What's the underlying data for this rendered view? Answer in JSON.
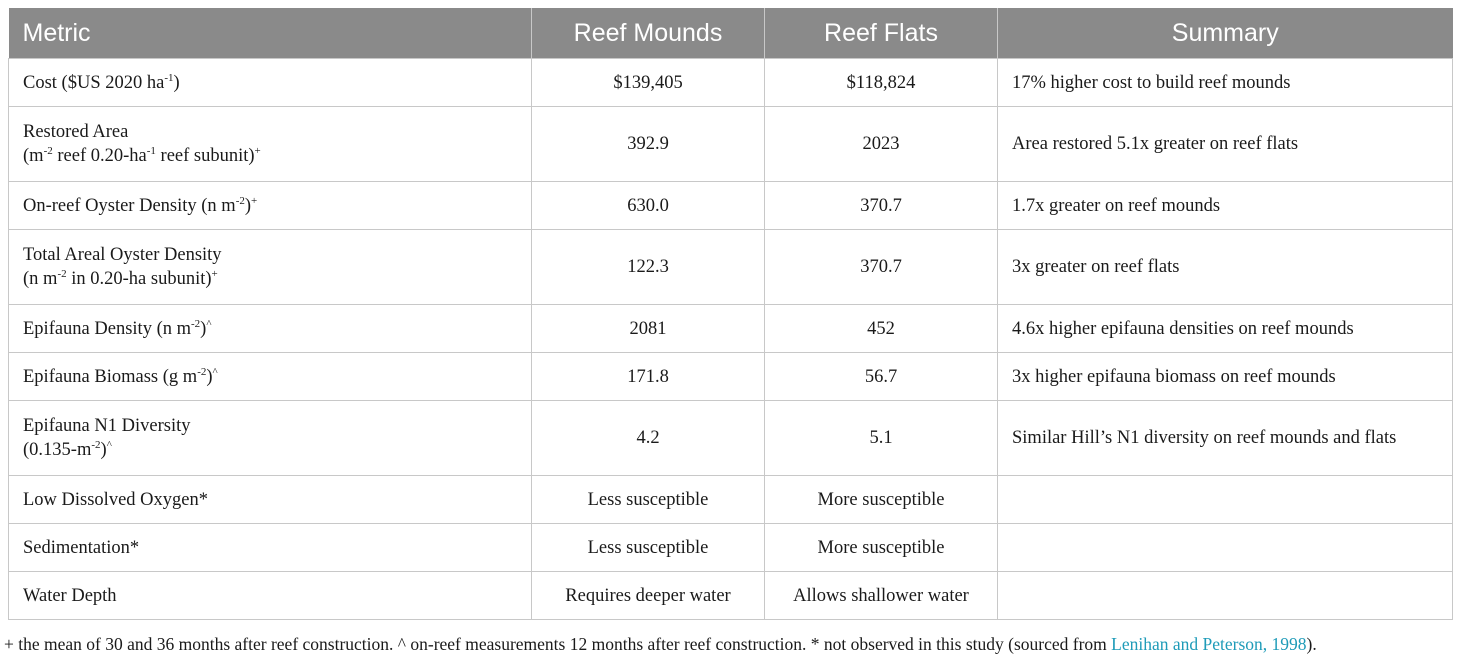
{
  "table": {
    "headers": [
      "Metric",
      "Reef Mounds",
      "Reef Flats",
      "Summary"
    ],
    "rows": [
      {
        "metric_line1": "Cost ($US 2020 ha",
        "metric_line1_sup": "-1",
        "metric_line1_end": ")",
        "reef_mounds": "$139,405",
        "reef_flats": "$118,824",
        "summary": "17% higher cost to build reef mounds"
      },
      {
        "metric_line1": "Restored Area",
        "metric_line2_a": "(m",
        "metric_line2_sup1": "-2",
        "metric_line2_b": " reef 0.20-ha",
        "metric_line2_sup2": "-1",
        "metric_line2_c": " reef subunit)",
        "metric_line2_sup3": "+",
        "reef_mounds": "392.9",
        "reef_flats": "2023",
        "summary": "Area restored 5.1x greater on reef flats"
      },
      {
        "metric_line1": "On-reef Oyster Density (n m",
        "metric_line1_sup": "-2",
        "metric_line1_end": ")",
        "metric_line1_sup2": "+",
        "reef_mounds": "630.0",
        "reef_flats": "370.7",
        "summary": "1.7x greater on reef mounds"
      },
      {
        "metric_line1": "Total Areal Oyster Density",
        "metric_line2_a": "(n m",
        "metric_line2_sup1": "-2",
        "metric_line2_b": " in 0.20-ha subunit)",
        "metric_line2_sup2": "+",
        "reef_mounds": "122.3",
        "reef_flats": "370.7",
        "summary": "3x greater on reef flats"
      },
      {
        "metric_line1": "Epifauna Density (n m",
        "metric_line1_sup": "-2",
        "metric_line1_end": ")",
        "metric_line1_sup2": "^",
        "reef_mounds": "2081",
        "reef_flats": "452",
        "summary": "4.6x higher epifauna densities on reef mounds"
      },
      {
        "metric_line1": "Epifauna Biomass (g m",
        "metric_line1_sup": "-2",
        "metric_line1_end": ")",
        "metric_line1_sup2": "^",
        "reef_mounds": "171.8",
        "reef_flats": "56.7",
        "summary": "3x higher epifauna biomass on reef mounds"
      },
      {
        "metric_line1": "Epifauna N1 Diversity",
        "metric_line2_a": "(0.135-m",
        "metric_line2_sup1": "-2",
        "metric_line2_b": ")",
        "metric_line2_sup2": "^",
        "reef_mounds": "4.2",
        "reef_flats": "5.1",
        "summary": "Similar Hill’s N1 diversity on reef mounds and flats"
      },
      {
        "metric_line1": "Low Dissolved Oxygen*",
        "reef_mounds": "Less susceptible",
        "reef_flats": "More susceptible",
        "summary": ""
      },
      {
        "metric_line1": "Sedimentation*",
        "reef_mounds": "Less susceptible",
        "reef_flats": "More susceptible",
        "summary": ""
      },
      {
        "metric_line1": "Water Depth",
        "reef_mounds": "Requires deeper water",
        "reef_flats": "Allows shallower water",
        "summary": ""
      }
    ]
  },
  "footnote": {
    "text": "+ the mean of 30 and 36 months after reef construction. ^ on-reef measurements 12 months after reef construction. * not observed in this study (sourced from ",
    "link_text": "Lenihan and Peterson, 1998",
    "text_end": ")."
  },
  "colors": {
    "header_bg": "#8a8a8a",
    "header_text": "#ffffff",
    "border": "#c8c8c8",
    "link": "#1e9bb8"
  }
}
